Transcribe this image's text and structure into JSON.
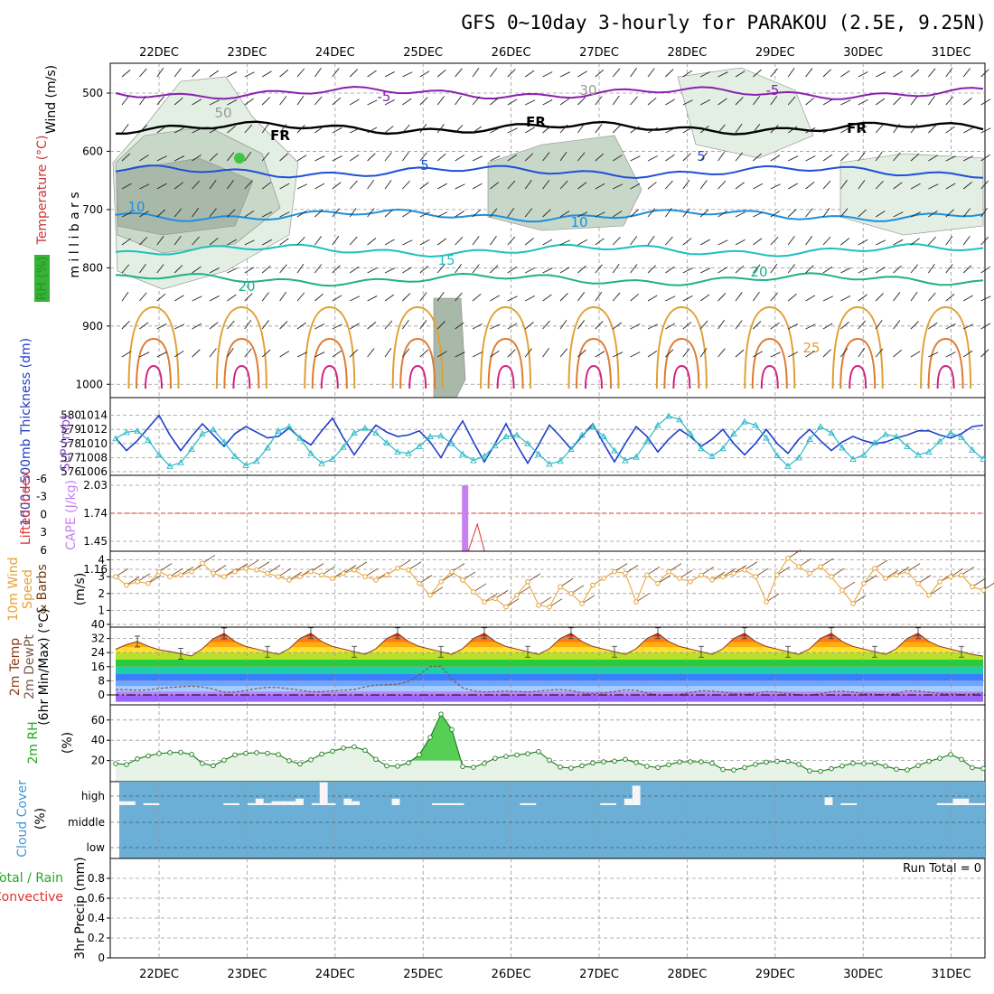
{
  "header": {
    "title": "GFS 0~10day 3-hourly for PARAKOU (2.5E, 9.25N)"
  },
  "chart_data": [
    {
      "panel": "upper-air",
      "type": "line",
      "x_dates": [
        "22DEC",
        "23DEC",
        "24DEC",
        "25DEC",
        "26DEC",
        "27DEC",
        "28DEC",
        "29DEC",
        "30DEC",
        "31DEC"
      ],
      "y_ticks": [
        500,
        600,
        700,
        800,
        900,
        1000
      ],
      "y_axis_labels": [
        "Wind (m/s)",
        "Temperature (°C)",
        "RH (%)",
        "m i l l i b a r s"
      ],
      "colors": {
        "wind": "#000000",
        "temperature": "#cc3333",
        "rh": "#22aa22"
      },
      "contour_labels": [
        "-5",
        "-5",
        "FR",
        "FR",
        "FR",
        "5",
        "5",
        "10",
        "10",
        "15",
        "20",
        "20",
        "25",
        "30",
        "50"
      ],
      "isotherm_levels": [
        {
          "label": "-5",
          "pressure_mb": 500,
          "color": "#8a1fb0"
        },
        {
          "label": "FR",
          "pressure_mb": 560,
          "color": "#000000"
        },
        {
          "label": "5",
          "pressure_mb": 635,
          "color": "#1f4fd8"
        },
        {
          "label": "10",
          "pressure_mb": 710,
          "color": "#1c8fe0"
        },
        {
          "label": "15",
          "pressure_mb": 770,
          "color": "#1fbfbf"
        },
        {
          "label": "20",
          "pressure_mb": 820,
          "color": "#1fb08a"
        }
      ]
    },
    {
      "panel": "thickness-slp",
      "type": "line",
      "y_axis_labels": [
        "1000~500mb Thickness (dm)",
        "SLP (mb)"
      ],
      "left_ticks": [
        576,
        577,
        578,
        579,
        580
      ],
      "right_ticks": [
        1006,
        1008,
        1010,
        1012,
        1014
      ],
      "colors": {
        "thickness": "#1f3fc8",
        "slp": "#2ab8c8"
      },
      "series": [
        {
          "name": "1000~500mb Thickness (dm)",
          "values": [
            578.4,
            577.5,
            578.2,
            579.1,
            580.0,
            578.6,
            577.5,
            578.5,
            579.4,
            578.6,
            577.8,
            578.7,
            579.2,
            578.8,
            578.4,
            578.5,
            579.1,
            578.4,
            577.9,
            578.9,
            579.8,
            578.4,
            577.2,
            578.3,
            579.3,
            578.8,
            578.5,
            578.6,
            578.9,
            578.1,
            577.0,
            578.4,
            579.6,
            578.1,
            576.7,
            578.0,
            579.4,
            577.9,
            576.6,
            577.9,
            579.3,
            578.5,
            577.6,
            578.5,
            579.4,
            578.0,
            576.7,
            578.0,
            579.2,
            578.5,
            577.4,
            578.3,
            579.0,
            578.5,
            577.8,
            578.3,
            579.0,
            578.0,
            577.2,
            578.0,
            579.0,
            578.0,
            577.3,
            578.3,
            579.0,
            578.2,
            577.5,
            578.1,
            578.5,
            578.2,
            578.0,
            578.1,
            578.4,
            578.6,
            578.9,
            578.9,
            578.6,
            578.4,
            578.7,
            579.2,
            579.3
          ]
        },
        {
          "name": "SLP (mb)",
          "values": [
            1010.7,
            1011.6,
            1011.8,
            1010.5,
            1008.4,
            1006.8,
            1007.3,
            1009.2,
            1011.4,
            1012.0,
            1010.2,
            1008.2,
            1006.9,
            1007.5,
            1009.4,
            1011.8,
            1012.4,
            1010.8,
            1008.6,
            1007.2,
            1007.8,
            1009.5,
            1011.5,
            1012.2,
            1011.5,
            1010.1,
            1008.8,
            1008.6,
            1009.6,
            1011.0,
            1011.1,
            1010.0,
            1008.5,
            1007.6,
            1008.2,
            1009.7,
            1011.0,
            1011.2,
            1010.0,
            1008.5,
            1007.1,
            1007.5,
            1009.2,
            1011.2,
            1012.4,
            1011.0,
            1009.0,
            1007.6,
            1008.1,
            1010.3,
            1012.6,
            1013.9,
            1013.4,
            1011.4,
            1009.3,
            1008.2,
            1009.3,
            1011.4,
            1013.1,
            1012.6,
            1010.8,
            1008.3,
            1006.8,
            1008.0,
            1010.6,
            1012.4,
            1011.5,
            1009.4,
            1007.8,
            1008.4,
            1010.1,
            1011.3,
            1011.0,
            1009.6,
            1008.4,
            1008.8,
            1010.3,
            1011.5,
            1010.9,
            1009.1,
            1007.8
          ]
        }
      ]
    },
    {
      "panel": "instability",
      "type": "bar",
      "y_axis_labels": [
        "Lifted Index",
        "CAPE (J/kg)"
      ],
      "left_ticks": [
        "-6",
        "-3",
        "0",
        "3",
        "6"
      ],
      "right_ticks": [
        "2.03",
        "1.74",
        "1.45",
        "1.16"
      ],
      "colors": {
        "lifted_index": "#e03030",
        "cape": "#c680f0"
      },
      "lifted_index_zero_line": 0,
      "cape_bar": {
        "date": "25DEC",
        "value": 2.03
      }
    },
    {
      "panel": "wind10m",
      "type": "line",
      "y_axis_labels": [
        "10m Wind Speed & Barbs (m/s)"
      ],
      "y_ticks": [
        1,
        2,
        3,
        4
      ],
      "ylim": [
        0,
        4.5
      ],
      "colors": {
        "speed": "#e8a030",
        "barbs": "#6a3a10"
      },
      "series": [
        {
          "name": "10m Wind Speed",
          "values": [
            3.0,
            2.5,
            2.7,
            2.6,
            3.3,
            3.0,
            3.1,
            3.3,
            3.8,
            3.2,
            3.0,
            3.3,
            3.5,
            3.4,
            3.2,
            3.0,
            2.8,
            3.0,
            3.3,
            3.1,
            2.9,
            3.2,
            3.4,
            3.0,
            2.8,
            3.1,
            3.5,
            3.4,
            2.6,
            1.9,
            2.7,
            3.3,
            2.8,
            2.1,
            1.5,
            1.7,
            1.2,
            1.9,
            2.7,
            1.3,
            1.2,
            2.4,
            2.0,
            1.4,
            2.5,
            2.9,
            3.3,
            3.2,
            1.5,
            3.1,
            2.6,
            3.3,
            2.9,
            2.7,
            3.1,
            2.8,
            3.0,
            3.2,
            3.4,
            3.0,
            1.5,
            3.1,
            4.1,
            3.6,
            3.2,
            3.6,
            3.0,
            2.2,
            1.4,
            2.6,
            3.5,
            2.9,
            3.1,
            3.3,
            2.6,
            1.9,
            2.7,
            3.0,
            3.1,
            2.4,
            2.2
          ]
        }
      ]
    },
    {
      "panel": "temperature2m",
      "type": "area",
      "y_axis_labels": [
        "2m Temp",
        "2m DewPt",
        "(6hr Min/Max) (°C)"
      ],
      "y_ticks": [
        0,
        8,
        16,
        24,
        32,
        40
      ],
      "ylim": [
        -4,
        40
      ],
      "colors": {
        "temp_line": "#8b3a1a",
        "dewpoint_line": "#7a5a4a"
      },
      "series": [
        {
          "name": "2m Temp",
          "values": [
            25.9,
            28.5,
            30.3,
            27.6,
            25.6,
            24.6,
            23.4,
            22.1,
            26.2,
            31.9,
            34.9,
            30.3,
            27.5,
            26.0,
            24.5,
            23.0,
            26.2,
            32.0,
            35.0,
            30.3,
            27.5,
            26.0,
            24.5,
            23.0,
            26.2,
            32.0,
            35.0,
            30.3,
            27.5,
            26.0,
            24.5,
            23.0,
            26.2,
            32.0,
            35.0,
            30.3,
            27.5,
            26.0,
            24.5,
            23.0,
            26.2,
            32.0,
            35.0,
            30.3,
            27.5,
            26.0,
            24.5,
            23.0,
            26.2,
            32.0,
            35.0,
            30.3,
            27.5,
            26.0,
            24.5,
            23.0,
            26.2,
            32.0,
            35.0,
            30.3,
            27.5,
            26.0,
            24.5,
            23.0,
            26.2,
            32.0,
            35.0,
            30.3,
            27.5,
            26.0,
            24.5,
            23.0,
            26.2,
            32.0,
            35.0,
            30.3,
            27.5,
            26.0,
            24.5,
            23.0,
            22.0
          ]
        },
        {
          "name": "2m DewPt",
          "values": [
            3.0,
            2.9,
            2.6,
            2.8,
            3.7,
            4.2,
            4.6,
            4.9,
            4.5,
            3.3,
            1.5,
            1.6,
            2.5,
            3.6,
            4.3,
            4.2,
            3.5,
            2.6,
            1.8,
            1.8,
            2.3,
            2.6,
            3.0,
            4.6,
            5.5,
            5.7,
            6.0,
            7.6,
            11.4,
            16.1,
            16.2,
            9.0,
            4.0,
            2.3,
            1.7,
            1.9,
            2.2,
            1.9,
            1.7,
            2.1,
            2.7,
            3.0,
            2.5,
            1.2,
            0.7,
            1.0,
            1.9,
            2.8,
            2.6,
            1.0,
            0.0,
            -0.2,
            0.2,
            1.3,
            2.4,
            2.1,
            1.6,
            0.8,
            0.3,
            0.8,
            1.9,
            1.6,
            0.7,
            0.1,
            -0.1,
            0.6,
            1.9,
            2.1,
            1.6,
            0.7,
            0.4,
            0.2,
            0.7,
            2.3,
            2.2,
            1.5,
            0.8,
            0.5,
            0.3,
            0.5,
            1.0
          ]
        }
      ]
    },
    {
      "panel": "rh2m",
      "type": "area",
      "y_axis_labels": [
        "2m RH",
        "(%)"
      ],
      "y_ticks": [
        20,
        40,
        60
      ],
      "ylim": [
        -5,
        75
      ],
      "colors": {
        "line": "#1a7a1a",
        "fill": "#e6f3e6",
        "peak": "#3cc83c"
      },
      "series": [
        {
          "name": "2m RH",
          "values": [
            16.9,
            16.0,
            21.6,
            24.6,
            26.8,
            27.8,
            28.1,
            26.0,
            17.1,
            14.8,
            20.3,
            25.5,
            27.1,
            27.7,
            27.2,
            25.9,
            19.8,
            16.6,
            20.7,
            26.3,
            29.1,
            32.3,
            33.5,
            30.1,
            21.2,
            14.7,
            14.4,
            17.7,
            25.7,
            42.8,
            65.9,
            50.6,
            14.1,
            13.3,
            17.1,
            22.2,
            24.1,
            25.5,
            26.7,
            28.8,
            20.3,
            13.5,
            12.5,
            14.8,
            17.6,
            18.7,
            19.4,
            21.2,
            18.0,
            14.3,
            13.1,
            15.9,
            18.6,
            18.8,
            18.7,
            17.3,
            11.2,
            10.6,
            13.0,
            16.2,
            18.4,
            19.2,
            19.2,
            16.2,
            9.8,
            9.3,
            11.9,
            14.6,
            17.3,
            17.0,
            17.3,
            14.5,
            11.4,
            10.7,
            15.0,
            19.2,
            22.2,
            25.9,
            21.1,
            13.0,
            12.1
          ]
        }
      ]
    },
    {
      "panel": "cloud-cover",
      "type": "bar",
      "y_axis_labels": [
        "Cloud Cover",
        "(%)"
      ],
      "level_labels": [
        "high",
        "middle",
        "low"
      ],
      "colors": {
        "background": "#6baed6",
        "cloud": "#f6f6f6"
      },
      "high_cloud_amount": [
        6,
        6,
        0,
        3,
        3,
        0,
        0,
        0,
        0,
        0,
        0,
        0,
        0,
        3,
        3,
        0,
        3,
        10,
        3,
        6,
        6,
        6,
        10,
        0,
        3,
        35,
        3,
        0,
        10,
        6,
        0,
        0,
        0,
        0,
        10,
        0,
        0,
        0,
        0,
        3,
        3,
        3,
        3,
        0,
        0,
        0,
        0,
        0,
        0,
        0,
        3,
        3,
        0,
        0,
        0,
        0,
        0,
        0,
        0,
        0,
        3,
        3,
        0,
        10,
        30,
        0,
        0,
        0,
        0,
        0,
        0,
        0,
        0,
        0,
        0,
        0,
        0,
        0,
        0,
        0,
        0,
        0,
        0,
        0,
        0,
        0,
        0,
        0,
        12,
        0,
        3,
        3,
        0,
        0,
        0,
        0,
        0,
        0,
        0,
        0,
        0,
        0,
        3,
        3,
        10,
        10,
        3,
        3
      ]
    },
    {
      "panel": "precipitation",
      "type": "bar",
      "y_axis_labels": [
        "Total / Rain",
        "Convective",
        "3hr Precip (mm)"
      ],
      "colors": {
        "total": "#22aa22",
        "convective": "#e03030"
      },
      "y_ticks": [
        "0",
        "0.2",
        "0.4",
        "0.6",
        "0.8"
      ],
      "ylim": [
        0,
        1
      ],
      "values": [],
      "run_total_label": "Run Total = 0"
    }
  ]
}
